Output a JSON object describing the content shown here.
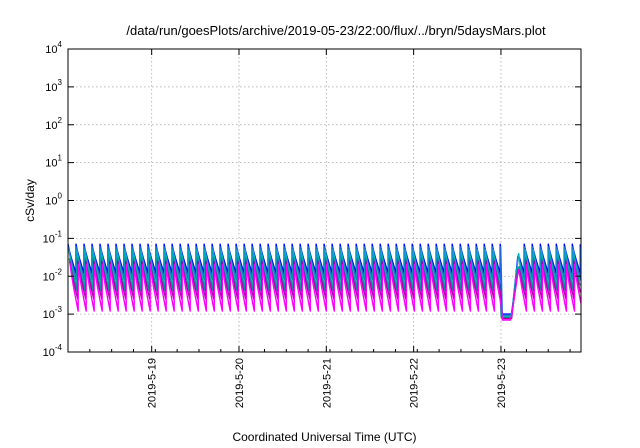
{
  "chart_data": {
    "type": "line",
    "title": "/data/run/goesPlots/archive/2019-05-23/22:00/flux/../bryn/5daysMars.plot",
    "xlabel": "Coordinated Universal Time (UTC)",
    "ylabel": "cSv/day",
    "yscale": "log",
    "ylim": [
      0.0001,
      10000
    ],
    "xlim": [
      "2019-05-18T01:00",
      "2019-05-23T22:00"
    ],
    "grid": true,
    "legend": "none",
    "y_ticks": [
      {
        "base": "10",
        "exp": "-4"
      },
      {
        "base": "10",
        "exp": "-3"
      },
      {
        "base": "10",
        "exp": "-2"
      },
      {
        "base": "10",
        "exp": "-1"
      },
      {
        "base": "10",
        "exp": "0"
      },
      {
        "base": "10",
        "exp": "1"
      },
      {
        "base": "10",
        "exp": "2"
      },
      {
        "base": "10",
        "exp": "3"
      },
      {
        "base": "10",
        "exp": "4"
      }
    ],
    "x_ticks": [
      "2019-5-19",
      "2019-5-20",
      "2019-5-21",
      "2019-5-22",
      "2019-5-23"
    ],
    "cycle_hours": 2.2,
    "gap": {
      "start": "2019-05-23T00:00",
      "end": "2019-05-23T03:00",
      "level": 0.001
    },
    "series": [
      {
        "color": "#0000ff",
        "peak": 0.07,
        "trough": 0.012
      },
      {
        "color": "#2266dd",
        "peak": 0.06,
        "trough": 0.008
      },
      {
        "color": "#00b3b3",
        "peak": 0.05,
        "trough": 0.005
      },
      {
        "color": "#009090",
        "peak": 0.03,
        "trough": 0.004
      },
      {
        "color": "#aa00aa",
        "peak": 0.025,
        "trough": 0.0025
      },
      {
        "color": "#ff00ff",
        "peak": 0.02,
        "trough": 0.0012
      }
    ]
  }
}
